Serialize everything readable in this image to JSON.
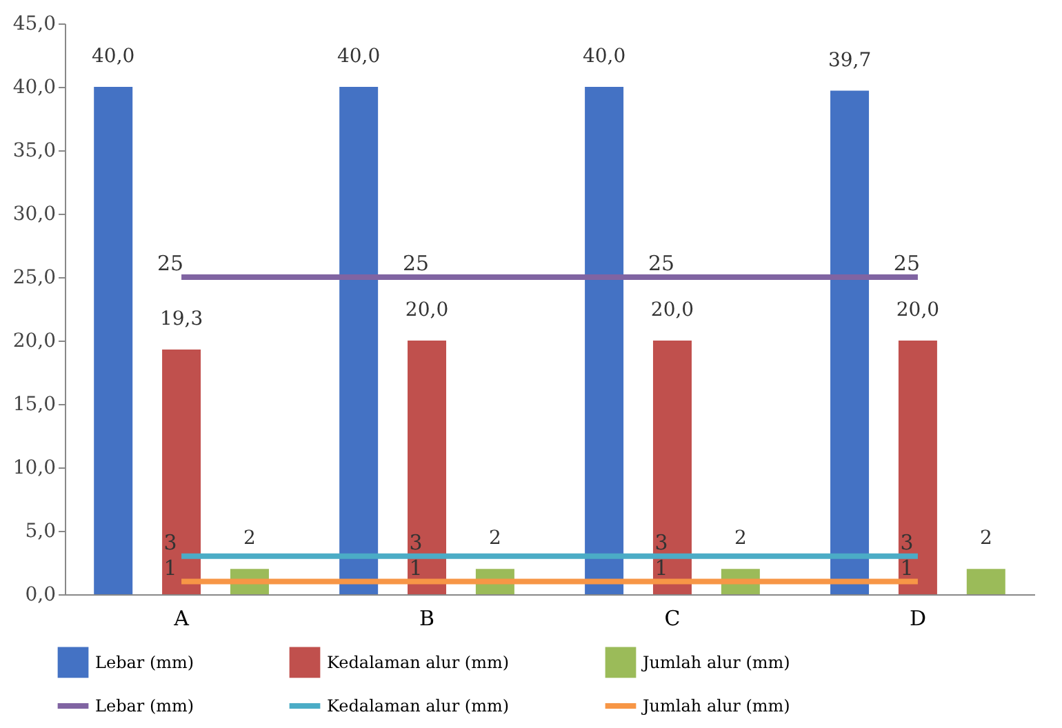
{
  "chart_data": {
    "type": "bar",
    "categories": [
      "A",
      "B",
      "C",
      "D"
    ],
    "series": [
      {
        "name": "Lebar (mm)",
        "type": "bar",
        "color": "#4472c4",
        "values": [
          40.0,
          40.0,
          40.0,
          39.7
        ],
        "value_labels": [
          "40,0",
          "40,0",
          "40,0",
          "39,7"
        ]
      },
      {
        "name": "Kedalaman alur (mm)",
        "type": "bar",
        "color": "#c0504d",
        "values": [
          19.3,
          20.0,
          20.0,
          20.0
        ],
        "value_labels": [
          "19,3",
          "20,0",
          "20,0",
          "20,0"
        ]
      },
      {
        "name": "Jumlah alur (mm)",
        "type": "bar",
        "color": "#9bbb59",
        "values": [
          2,
          2,
          2,
          2
        ],
        "value_labels": [
          "2",
          "2",
          "2",
          "2"
        ]
      },
      {
        "name": "Lebar (mm)",
        "type": "line",
        "color": "#8064a2",
        "values": [
          25,
          25,
          25,
          25
        ],
        "value_labels": [
          "25",
          "25",
          "25",
          "25"
        ]
      },
      {
        "name": "Kedalaman alur (mm)",
        "type": "line",
        "color": "#4bacc6",
        "values": [
          3,
          3,
          3,
          3
        ],
        "value_labels": [
          "3",
          "3",
          "3",
          "3"
        ]
      },
      {
        "name": "Jumlah alur (mm)",
        "type": "line",
        "color": "#f79646",
        "values": [
          1,
          1,
          1,
          1
        ],
        "value_labels": [
          "1",
          "1",
          "1",
          "1"
        ]
      }
    ],
    "ylim": [
      0,
      45
    ],
    "yticks": [
      {
        "value": 0,
        "label": "0,0"
      },
      {
        "value": 5,
        "label": "5,0"
      },
      {
        "value": 10,
        "label": "10,0"
      },
      {
        "value": 15,
        "label": "15,0"
      },
      {
        "value": 20,
        "label": "20,0"
      },
      {
        "value": 25,
        "label": "25,0"
      },
      {
        "value": 30,
        "label": "30,0"
      },
      {
        "value": 35,
        "label": "35,0"
      },
      {
        "value": 40,
        "label": "40,0"
      },
      {
        "value": 45,
        "label": "45,0"
      }
    ],
    "legend": "bottom"
  }
}
